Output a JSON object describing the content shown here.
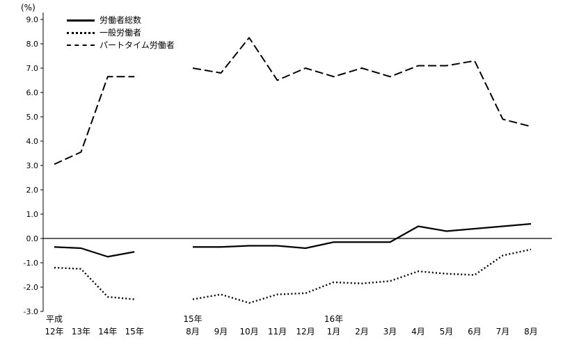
{
  "chart_data": {
    "type": "line",
    "title": "",
    "unit_label": "(%)",
    "ylim": [
      -3.0,
      9.0
    ],
    "ytick_step": 1.0,
    "grid": false,
    "legend_position": "top-left",
    "line_color": "#000000",
    "categories": [
      {
        "label": "12年",
        "top": "平成"
      },
      {
        "label": "13年"
      },
      {
        "label": "14年"
      },
      {
        "label": "15年"
      },
      {
        "label": "8月",
        "top": "15年",
        "gap_before": true
      },
      {
        "label": "9月"
      },
      {
        "label": "10月"
      },
      {
        "label": "11月"
      },
      {
        "label": "12月"
      },
      {
        "label": "1月",
        "top": "16年"
      },
      {
        "label": "2月"
      },
      {
        "label": "3月"
      },
      {
        "label": "4月"
      },
      {
        "label": "5月"
      },
      {
        "label": "6月"
      },
      {
        "label": "7月"
      },
      {
        "label": "8月"
      }
    ],
    "series": [
      {
        "name": "労働者総数",
        "style": "solid",
        "values": [
          -0.35,
          -0.4,
          -0.75,
          -0.55,
          -0.35,
          -0.35,
          -0.3,
          -0.3,
          -0.4,
          -0.15,
          -0.15,
          -0.15,
          0.5,
          0.3,
          0.4,
          0.5,
          0.6
        ]
      },
      {
        "name": "一般労働者",
        "style": "dotted",
        "values": [
          -1.2,
          -1.25,
          -2.4,
          -2.5,
          -2.5,
          -2.3,
          -2.65,
          -2.3,
          -2.25,
          -1.8,
          -1.85,
          -1.75,
          -1.35,
          -1.45,
          -1.5,
          -0.7,
          -0.45
        ]
      },
      {
        "name": "パートタイム労働者",
        "style": "dashed",
        "values": [
          3.05,
          3.55,
          6.65,
          6.65,
          7.0,
          6.8,
          8.25,
          6.5,
          7.0,
          6.65,
          7.0,
          6.65,
          7.1,
          7.1,
          7.3,
          4.9,
          4.6
        ]
      }
    ]
  }
}
